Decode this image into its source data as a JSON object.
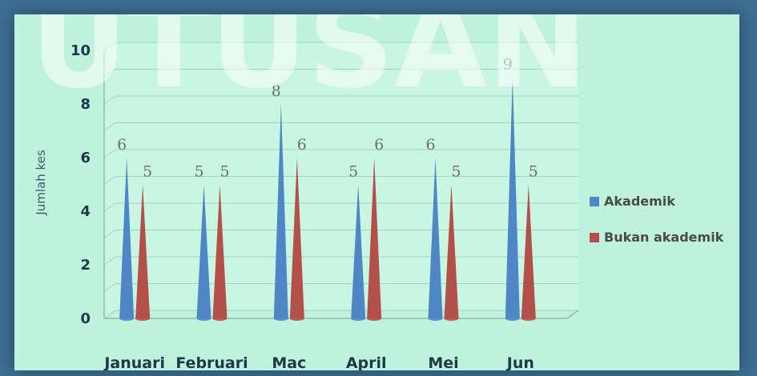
{
  "watermark": {
    "text": "UTUSAN"
  },
  "chart_data": {
    "type": "bar",
    "categories": [
      "Januari",
      "Februari",
      "Mac",
      "April",
      "Mei",
      "Jun"
    ],
    "series": [
      {
        "name": "Akademik",
        "values": [
          6,
          5,
          8,
          5,
          6,
          9
        ],
        "color": "#4f86c6"
      },
      {
        "name": "Bukan akademik",
        "values": [
          5,
          5,
          6,
          6,
          5,
          5
        ],
        "color": "#b3504a"
      }
    ],
    "ylabel": "Jumlah kes",
    "ylim": [
      0,
      10
    ],
    "yticks": [
      "0",
      "2",
      "4",
      "6",
      "8",
      "10"
    ],
    "grid": true,
    "legend_position": "right"
  }
}
